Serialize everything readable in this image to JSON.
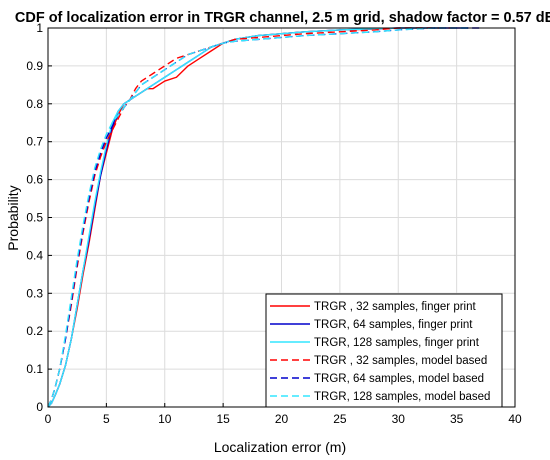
{
  "chart_data": {
    "type": "line",
    "title": "CDF of localization error in TRGR channel, 2.5 m grid, shadow factor = 0.57 dB",
    "xlabel": "Localization error (m)",
    "ylabel": "Probability",
    "xlim": [
      0,
      40
    ],
    "ylim": [
      0,
      1
    ],
    "xticks": [
      "0",
      "5",
      "10",
      "15",
      "20",
      "25",
      "30",
      "35",
      "40"
    ],
    "yticks": [
      "0",
      "0.1",
      "0.2",
      "0.3",
      "0.4",
      "0.5",
      "0.6",
      "0.7",
      "0.8",
      "0.9",
      "1"
    ],
    "grid": true,
    "legend_position": "bottom-right",
    "series": [
      {
        "name": "TRGR , 32 samples, finger print",
        "color": "#ff0000",
        "dash": "solid",
        "points": [
          [
            0,
            0
          ],
          [
            0.3,
            0.01
          ],
          [
            0.6,
            0.03
          ],
          [
            1,
            0.06
          ],
          [
            1.5,
            0.11
          ],
          [
            2,
            0.18
          ],
          [
            2.5,
            0.26
          ],
          [
            3,
            0.35
          ],
          [
            3.5,
            0.43
          ],
          [
            4,
            0.52
          ],
          [
            4.5,
            0.61
          ],
          [
            5,
            0.67
          ],
          [
            5.5,
            0.73
          ],
          [
            6,
            0.77
          ],
          [
            6.5,
            0.8
          ],
          [
            7,
            0.81
          ],
          [
            7.5,
            0.82
          ],
          [
            8,
            0.83
          ],
          [
            8.5,
            0.84
          ],
          [
            9,
            0.84
          ],
          [
            9.5,
            0.85
          ],
          [
            10,
            0.86
          ],
          [
            11,
            0.87
          ],
          [
            12,
            0.9
          ],
          [
            13,
            0.92
          ],
          [
            14,
            0.94
          ],
          [
            15,
            0.96
          ],
          [
            16,
            0.97
          ],
          [
            18,
            0.98
          ],
          [
            20,
            0.985
          ],
          [
            22,
            0.99
          ],
          [
            25,
            0.995
          ],
          [
            28,
            0.997
          ],
          [
            30,
            1
          ],
          [
            34,
            1
          ]
        ]
      },
      {
        "name": "TRGR,  64 samples,  finger print",
        "color": "#0000cc",
        "dash": "solid",
        "points": [
          [
            0,
            0
          ],
          [
            0.3,
            0.01
          ],
          [
            0.6,
            0.03
          ],
          [
            1,
            0.06
          ],
          [
            1.5,
            0.11
          ],
          [
            2,
            0.18
          ],
          [
            2.5,
            0.27
          ],
          [
            3,
            0.36
          ],
          [
            3.5,
            0.44
          ],
          [
            4,
            0.53
          ],
          [
            4.5,
            0.61
          ],
          [
            5,
            0.68
          ],
          [
            5.5,
            0.74
          ],
          [
            6,
            0.78
          ],
          [
            6.5,
            0.8
          ],
          [
            7,
            0.81
          ],
          [
            7.5,
            0.82
          ],
          [
            8,
            0.83
          ],
          [
            8.5,
            0.84
          ],
          [
            9,
            0.85
          ],
          [
            10,
            0.87
          ],
          [
            11,
            0.89
          ],
          [
            12,
            0.91
          ],
          [
            13,
            0.93
          ],
          [
            14,
            0.95
          ],
          [
            15,
            0.96
          ],
          [
            16,
            0.97
          ],
          [
            18,
            0.98
          ],
          [
            20,
            0.985
          ],
          [
            22,
            0.99
          ],
          [
            25,
            0.995
          ],
          [
            28,
            0.998
          ],
          [
            30,
            1
          ],
          [
            36,
            1
          ]
        ]
      },
      {
        "name": "TRGR, 128 samples, finger print",
        "color": "#33e6ff",
        "dash": "solid",
        "points": [
          [
            0,
            0
          ],
          [
            0.3,
            0.01
          ],
          [
            0.6,
            0.03
          ],
          [
            1,
            0.06
          ],
          [
            1.5,
            0.11
          ],
          [
            2,
            0.18
          ],
          [
            2.5,
            0.27
          ],
          [
            3,
            0.36
          ],
          [
            3.5,
            0.45
          ],
          [
            4,
            0.54
          ],
          [
            4.5,
            0.62
          ],
          [
            5,
            0.69
          ],
          [
            5.5,
            0.75
          ],
          [
            6,
            0.78
          ],
          [
            6.5,
            0.8
          ],
          [
            7,
            0.81
          ],
          [
            7.5,
            0.82
          ],
          [
            8,
            0.83
          ],
          [
            8.5,
            0.84
          ],
          [
            9,
            0.85
          ],
          [
            10,
            0.87
          ],
          [
            11,
            0.89
          ],
          [
            12,
            0.91
          ],
          [
            13,
            0.93
          ],
          [
            14,
            0.95
          ],
          [
            15,
            0.96
          ],
          [
            16,
            0.97
          ],
          [
            18,
            0.98
          ],
          [
            20,
            0.985
          ],
          [
            22,
            0.99
          ],
          [
            25,
            0.995
          ],
          [
            28,
            0.998
          ],
          [
            30,
            1
          ],
          [
            34,
            1
          ]
        ]
      },
      {
        "name": "TRGR , 32 samples, model based",
        "color": "#ff0000",
        "dash": "dashed",
        "points": [
          [
            0,
            0
          ],
          [
            0.3,
            0.02
          ],
          [
            0.6,
            0.05
          ],
          [
            1,
            0.1
          ],
          [
            1.5,
            0.18
          ],
          [
            2,
            0.27
          ],
          [
            2.5,
            0.37
          ],
          [
            3,
            0.46
          ],
          [
            3.5,
            0.54
          ],
          [
            4,
            0.61
          ],
          [
            4.5,
            0.66
          ],
          [
            5,
            0.7
          ],
          [
            5.5,
            0.73
          ],
          [
            6,
            0.76
          ],
          [
            6.5,
            0.79
          ],
          [
            7,
            0.81
          ],
          [
            7.5,
            0.84
          ],
          [
            8,
            0.86
          ],
          [
            8.5,
            0.87
          ],
          [
            9,
            0.88
          ],
          [
            10,
            0.9
          ],
          [
            11,
            0.92
          ],
          [
            12,
            0.93
          ],
          [
            13,
            0.94
          ],
          [
            14,
            0.95
          ],
          [
            15,
            0.96
          ],
          [
            16,
            0.97
          ],
          [
            18,
            0.975
          ],
          [
            20,
            0.98
          ],
          [
            22,
            0.985
          ],
          [
            25,
            0.99
          ],
          [
            28,
            0.995
          ],
          [
            30,
            1
          ],
          [
            35,
            1
          ]
        ]
      },
      {
        "name": "TRGR,  64 samples,  model based",
        "color": "#0000cc",
        "dash": "dashed",
        "points": [
          [
            0,
            0
          ],
          [
            0.3,
            0.02
          ],
          [
            0.6,
            0.05
          ],
          [
            1,
            0.1
          ],
          [
            1.5,
            0.18
          ],
          [
            2,
            0.28
          ],
          [
            2.5,
            0.38
          ],
          [
            3,
            0.47
          ],
          [
            3.5,
            0.55
          ],
          [
            4,
            0.62
          ],
          [
            4.5,
            0.67
          ],
          [
            5,
            0.71
          ],
          [
            5.5,
            0.74
          ],
          [
            6,
            0.77
          ],
          [
            6.5,
            0.79
          ],
          [
            7,
            0.81
          ],
          [
            7.5,
            0.83
          ],
          [
            8,
            0.85
          ],
          [
            8.5,
            0.86
          ],
          [
            9,
            0.87
          ],
          [
            10,
            0.89
          ],
          [
            11,
            0.91
          ],
          [
            12,
            0.93
          ],
          [
            13,
            0.94
          ],
          [
            14,
            0.95
          ],
          [
            15,
            0.96
          ],
          [
            16,
            0.965
          ],
          [
            18,
            0.97
          ],
          [
            20,
            0.975
          ],
          [
            22,
            0.98
          ],
          [
            25,
            0.985
          ],
          [
            28,
            0.99
          ],
          [
            30,
            0.995
          ],
          [
            33,
            1
          ],
          [
            37,
            1
          ]
        ]
      },
      {
        "name": "TRGR, 128 samples, model based",
        "color": "#33e6ff",
        "dash": "dashed",
        "points": [
          [
            0,
            0
          ],
          [
            0.3,
            0.02
          ],
          [
            0.6,
            0.05
          ],
          [
            1,
            0.1
          ],
          [
            1.5,
            0.19
          ],
          [
            2,
            0.29
          ],
          [
            2.5,
            0.39
          ],
          [
            3,
            0.48
          ],
          [
            3.5,
            0.56
          ],
          [
            4,
            0.63
          ],
          [
            4.5,
            0.68
          ],
          [
            5,
            0.72
          ],
          [
            5.5,
            0.75
          ],
          [
            6,
            0.77
          ],
          [
            6.5,
            0.79
          ],
          [
            7,
            0.81
          ],
          [
            7.5,
            0.83
          ],
          [
            8,
            0.85
          ],
          [
            8.5,
            0.86
          ],
          [
            9,
            0.87
          ],
          [
            10,
            0.89
          ],
          [
            11,
            0.91
          ],
          [
            12,
            0.93
          ],
          [
            13,
            0.94
          ],
          [
            14,
            0.95
          ],
          [
            15,
            0.96
          ],
          [
            16,
            0.965
          ],
          [
            18,
            0.97
          ],
          [
            20,
            0.975
          ],
          [
            22,
            0.98
          ],
          [
            25,
            0.985
          ],
          [
            28,
            0.99
          ],
          [
            30,
            0.995
          ],
          [
            33,
            1
          ],
          [
            36,
            1
          ]
        ]
      }
    ]
  }
}
